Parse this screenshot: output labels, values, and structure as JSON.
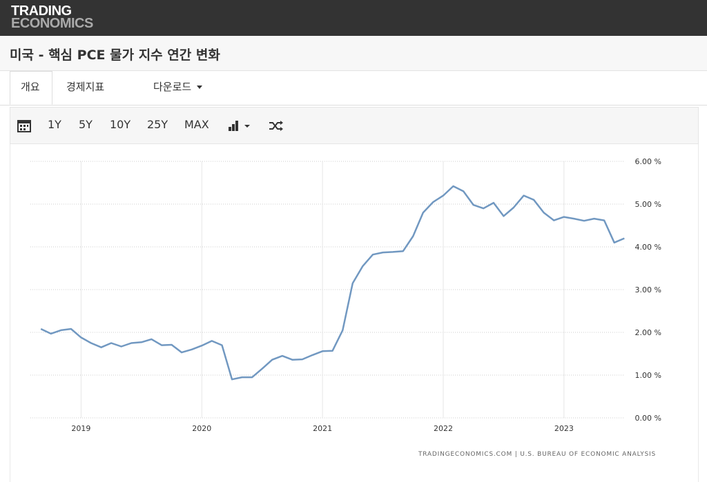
{
  "header": {
    "logo_line1": "TRADING",
    "logo_line2": "ECONOMICS",
    "title": "미국 - 핵심 PCE 물가 지수 연간 변화"
  },
  "tabs": [
    "개요",
    "경제지표",
    "다운로드"
  ],
  "toolbar": [
    "1Y",
    "5Y",
    "10Y",
    "25Y",
    "MAX"
  ],
  "chart_data": {
    "type": "line",
    "source": "TRADINGECONOMICS.COM | U.S. BUREAU OF ECONOMIC ANALYSIS",
    "x": [
      2018.667,
      2018.75,
      2018.833,
      2018.917,
      2019.0,
      2019.083,
      2019.167,
      2019.25,
      2019.333,
      2019.417,
      2019.5,
      2019.583,
      2019.667,
      2019.75,
      2019.833,
      2019.917,
      2020.0,
      2020.083,
      2020.167,
      2020.25,
      2020.333,
      2020.417,
      2020.5,
      2020.583,
      2020.667,
      2020.75,
      2020.833,
      2020.917,
      2021.0,
      2021.083,
      2021.167,
      2021.25,
      2021.333,
      2021.417,
      2021.5,
      2021.583,
      2021.667,
      2021.75,
      2021.833,
      2021.917,
      2022.0,
      2022.083,
      2022.167,
      2022.25,
      2022.333,
      2022.417,
      2022.5,
      2022.583,
      2022.667,
      2022.75,
      2022.833,
      2022.917,
      2023.0,
      2023.083,
      2023.167,
      2023.25,
      2023.333,
      2023.417,
      2023.5
    ],
    "series": [
      {
        "color": "#7198c1",
        "values": [
          2.08,
          1.97,
          2.05,
          2.08,
          1.88,
          1.75,
          1.65,
          1.75,
          1.67,
          1.75,
          1.77,
          1.84,
          1.7,
          1.71,
          1.53,
          1.6,
          1.69,
          1.8,
          1.7,
          0.9,
          0.95,
          0.95,
          1.15,
          1.36,
          1.45,
          1.36,
          1.37,
          1.47,
          1.56,
          1.57,
          2.05,
          3.15,
          3.55,
          3.82,
          3.87,
          3.88,
          3.9,
          4.25,
          4.8,
          5.05,
          5.2,
          5.42,
          5.3,
          4.98,
          4.9,
          5.03,
          4.72,
          4.92,
          5.2,
          5.1,
          4.8,
          4.62,
          4.7,
          4.66,
          4.61,
          4.66,
          4.62,
          4.1,
          4.2
        ]
      }
    ],
    "xlim": [
      2018.58,
      2023.55
    ],
    "xticks": [
      2019,
      2020,
      2021,
      2022,
      2023
    ],
    "ylim": [
      0,
      6
    ],
    "yticks": [
      {
        "value": 0,
        "label": "0.00 %"
      },
      {
        "value": 1,
        "label": "1.00 %"
      },
      {
        "value": 2,
        "label": "2.00 %"
      },
      {
        "value": 3,
        "label": "3.00 %"
      },
      {
        "value": 4,
        "label": "4.00 %"
      },
      {
        "value": 5,
        "label": "5.00 %"
      },
      {
        "value": 6,
        "label": "6.00 %"
      }
    ],
    "grid": true
  }
}
